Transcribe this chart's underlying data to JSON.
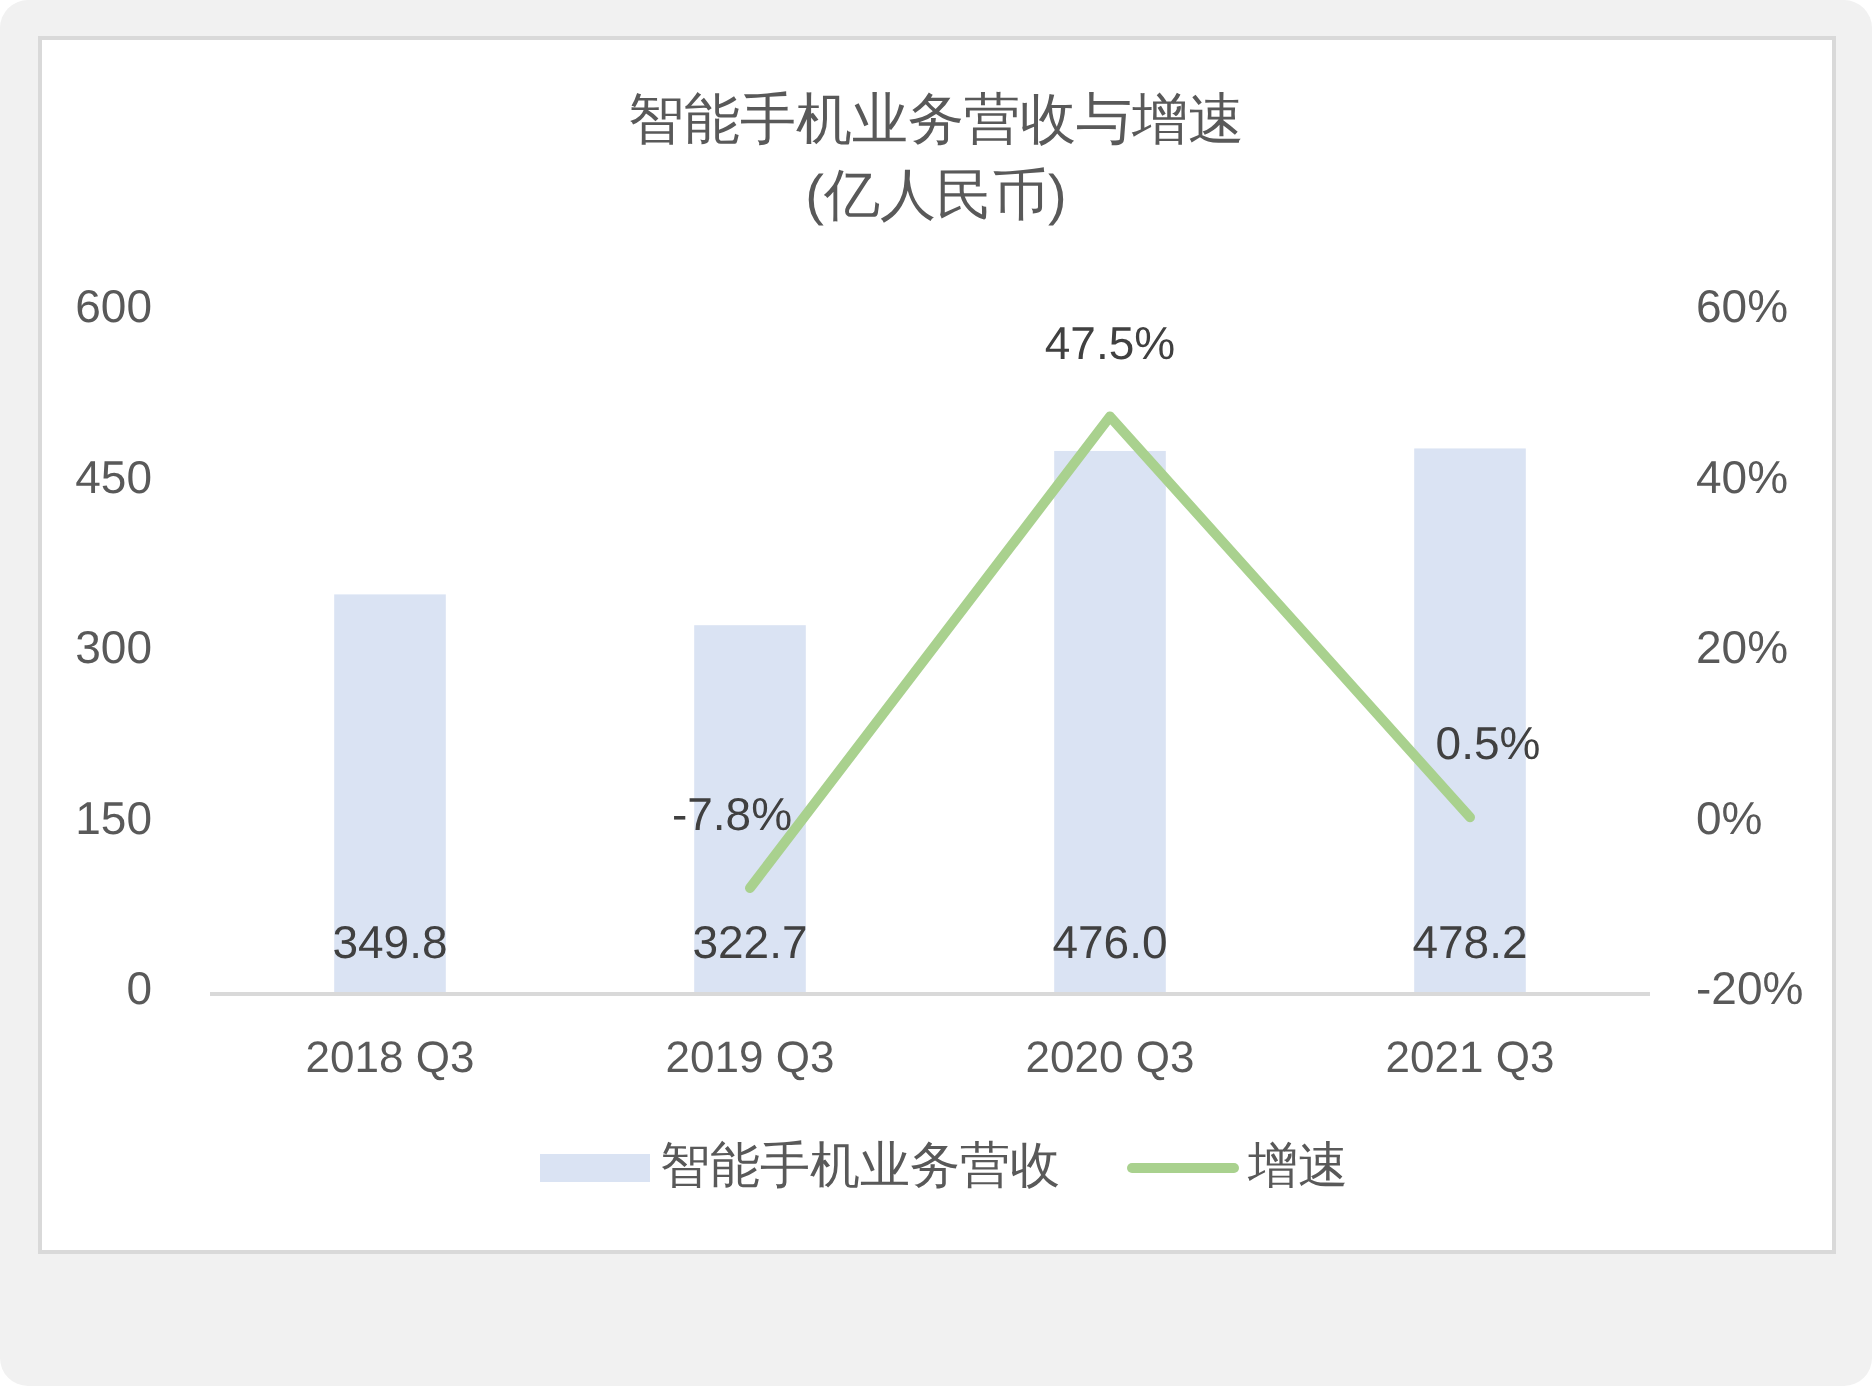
{
  "chart_data": {
    "type": "bar",
    "title": "智能手机业务营收与增速",
    "subtitle": "(亿人民币)",
    "categories": [
      "2018 Q3",
      "2019 Q3",
      "2020 Q3",
      "2021 Q3"
    ],
    "series": [
      {
        "name": "智能手机业务营收",
        "color": "#dae3f3",
        "values": [
          349.8,
          322.7,
          476.0,
          478.2
        ],
        "value_labels": [
          "349.8",
          "322.7",
          "476.0",
          "478.2"
        ]
      },
      {
        "name": "增速",
        "type": "line",
        "axis": "y2",
        "color": "#a9d18e",
        "values": [
          null,
          -7.8,
          47.5,
          0.5
        ],
        "value_labels": [
          null,
          "-7.8%",
          "47.5%",
          "0.5%"
        ]
      }
    ],
    "ylim": [
      0,
      600
    ],
    "yticks": [
      0,
      150,
      300,
      450,
      600
    ],
    "y2lim": [
      -20,
      60
    ],
    "y2ticks": [
      {
        "value": -20,
        "label": "-20%"
      },
      {
        "value": 0,
        "label": "0%"
      },
      {
        "value": 20,
        "label": "20%"
      },
      {
        "value": 40,
        "label": "40%"
      },
      {
        "value": 60,
        "label": "60%"
      }
    ],
    "legend": "bottom"
  }
}
